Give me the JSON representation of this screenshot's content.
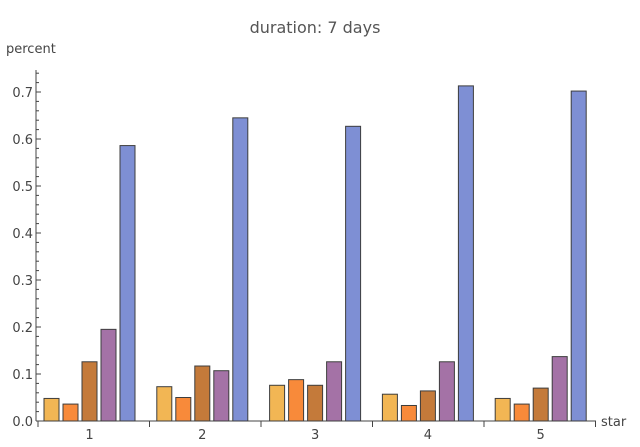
{
  "chart_data": {
    "type": "bar",
    "title": "duration: 7 days",
    "xlabel": "star",
    "ylabel": "percent",
    "categories": [
      "1",
      "2",
      "3",
      "4",
      "5"
    ],
    "ylim": [
      0,
      0.75
    ],
    "yticks": [
      "0.0",
      "0.1",
      "0.2",
      "0.3",
      "0.4",
      "0.5",
      "0.6",
      "0.7"
    ],
    "grid": false,
    "series": [
      {
        "color": "#f2b654",
        "values": [
          0.048,
          0.073,
          0.076,
          0.057,
          0.048
        ]
      },
      {
        "color": "#f88a3a",
        "values": [
          0.036,
          0.05,
          0.088,
          0.033,
          0.036
        ]
      },
      {
        "color": "#c47a3a",
        "values": [
          0.126,
          0.117,
          0.076,
          0.064,
          0.07
        ]
      },
      {
        "color": "#a472a6",
        "values": [
          0.195,
          0.107,
          0.126,
          0.126,
          0.137
        ]
      },
      {
        "color": "#7e8fd4",
        "values": [
          0.586,
          0.645,
          0.627,
          0.713,
          0.702
        ]
      }
    ]
  }
}
